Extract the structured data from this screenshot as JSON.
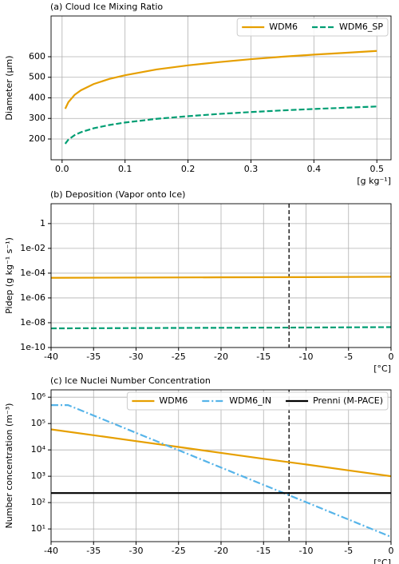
{
  "chart_data": [
    {
      "type": "line",
      "title": "(a) Cloud Ice Mixing Ratio",
      "xlabel": "[g kg⁻¹]",
      "ylabel": "Diameter (μm)",
      "xlim": [
        -0.0175,
        0.5225
      ],
      "ylim": [
        99,
        798
      ],
      "xticks": [
        {
          "value": 0,
          "label": "0.0"
        },
        0.1,
        0.2,
        0.3,
        0.4,
        0.5
      ],
      "yticks": [
        200,
        300,
        400,
        500,
        600
      ],
      "log_y": false,
      "grid": true,
      "legend": "upper right",
      "series": [
        {
          "name": "WDM6",
          "color": "#e69f00",
          "dash": "solid",
          "x": [
            0.005,
            0.01,
            0.02,
            0.03,
            0.05,
            0.075,
            0.1,
            0.15,
            0.2,
            0.25,
            0.3,
            0.35,
            0.4,
            0.45,
            0.5
          ],
          "values": [
            347,
            379,
            415,
            437,
            467,
            492,
            510,
            538,
            558,
            574,
            588,
            600,
            610,
            619,
            628
          ]
        },
        {
          "name": "WDM6_SP",
          "color": "#009e73",
          "dash": "dashed",
          "x": [
            0.005,
            0.01,
            0.02,
            0.03,
            0.05,
            0.075,
            0.1,
            0.15,
            0.2,
            0.25,
            0.3,
            0.35,
            0.4,
            0.45,
            0.5
          ],
          "values": [
            177,
            197,
            219,
            233,
            252,
            268,
            280,
            298,
            311,
            322,
            331,
            339,
            346,
            352,
            358
          ]
        }
      ]
    },
    {
      "type": "line",
      "title": "(b) Deposition (Vapor onto Ice)",
      "xlabel": "[°C]",
      "ylabel": "Pidep (g kg⁻¹ s⁻¹)",
      "xlim": [
        -40,
        0
      ],
      "ylim": [
        1e-10,
        40
      ],
      "xticks": [
        -40,
        -35,
        -30,
        -25,
        -20,
        -15,
        -10,
        -5,
        0
      ],
      "yticks": [
        {
          "value": 1e-10,
          "label": "1e-10"
        },
        {
          "value": 1e-08,
          "label": "1e-08"
        },
        {
          "value": 1e-06,
          "label": "1e-06"
        },
        {
          "value": 0.0001,
          "label": "1e-04"
        },
        {
          "value": 0.01,
          "label": "1e-02"
        },
        1
      ],
      "log_y": true,
      "grid": true,
      "vline": -12,
      "series": [
        {
          "color": "#e69f00",
          "dash": "solid",
          "x": [
            -40,
            -30,
            -20,
            -10,
            0
          ],
          "values": [
            4.2e-05,
            4.4e-05,
            4.6e-05,
            4.8e-05,
            5.1e-05
          ]
        },
        {
          "color": "#009e73",
          "dash": "dashed",
          "x": [
            -40,
            -30,
            -20,
            -10,
            0
          ],
          "values": [
            3.5e-09,
            3.7e-09,
            3.9e-09,
            4.1e-09,
            4.4e-09
          ]
        }
      ]
    },
    {
      "type": "line",
      "title": "(c) Ice Nuclei Number Concentration",
      "xlabel": "[°C]",
      "ylabel": "Number concentration (m⁻³)",
      "xlim": [
        -40,
        0
      ],
      "ylim": [
        3.3,
        1900000
      ],
      "xticks": [
        -40,
        -35,
        -30,
        -25,
        -20,
        -15,
        -10,
        -5,
        0
      ],
      "yticks": [
        {
          "value": 10,
          "label": "10¹"
        },
        {
          "value": 100,
          "label": "10²"
        },
        {
          "value": 1000,
          "label": "10³"
        },
        {
          "value": 10000,
          "label": "10⁴"
        },
        {
          "value": 100000,
          "label": "10⁵"
        },
        {
          "value": 1000000,
          "label": "10⁶"
        }
      ],
      "log_y": true,
      "grid": true,
      "vline": -12,
      "legend": "upper right",
      "series": [
        {
          "name": "WDM6",
          "color": "#e69f00",
          "dash": "solid",
          "x": [
            -40,
            -35,
            -30,
            -25,
            -20,
            -15,
            -10,
            -5,
            0
          ],
          "values": [
            60000,
            36000,
            21500,
            12900,
            7700,
            4600,
            2800,
            1670,
            1000
          ]
        },
        {
          "name": "WDM6_IN",
          "color": "#56b4e9",
          "dash": "dashdot",
          "x": [
            -40,
            -38,
            -35,
            -30,
            -25,
            -20,
            -15,
            -10,
            -5,
            0
          ],
          "values": [
            500000,
            500000,
            202000,
            44400,
            9750,
            2140,
            471,
            104,
            22.8,
            5.0
          ]
        },
        {
          "name": "Prenni (M-PACE)",
          "color": "#000000",
          "dash": "solid",
          "x": [
            -40,
            0
          ],
          "values": [
            230,
            230
          ]
        }
      ]
    }
  ]
}
